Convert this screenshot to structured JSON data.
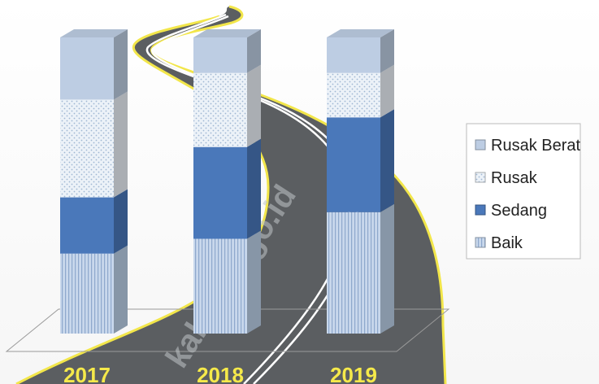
{
  "chart_data": {
    "type": "bar",
    "stacked": true,
    "categories": [
      "2017",
      "2018",
      "2019"
    ],
    "series": [
      {
        "name": "Baik",
        "values": [
          27,
          32,
          41
        ],
        "color": "#bcd0e8"
      },
      {
        "name": "Sedang",
        "values": [
          19,
          31,
          32
        ],
        "color": "#4a78ba"
      },
      {
        "name": "Rusak",
        "values": [
          33,
          25,
          15
        ],
        "color": "#ecf2f8"
      },
      {
        "name": "Rusak Berat",
        "values": [
          21,
          12,
          12
        ],
        "color": "#bdcde3"
      }
    ],
    "legend_order": [
      "Rusak Berat",
      "Rusak",
      "Sedang",
      "Baik"
    ],
    "ylim": [
      0,
      100
    ],
    "legend_position": "right",
    "grid": false,
    "title": "",
    "xlabel": "",
    "ylabel": ""
  },
  "watermark": "kab.bps.go.id",
  "colors": {
    "road": "#5b5e61",
    "road_edge": "#f2e64a",
    "road_line": "#ffffff",
    "year_label": "#f5e94a"
  }
}
